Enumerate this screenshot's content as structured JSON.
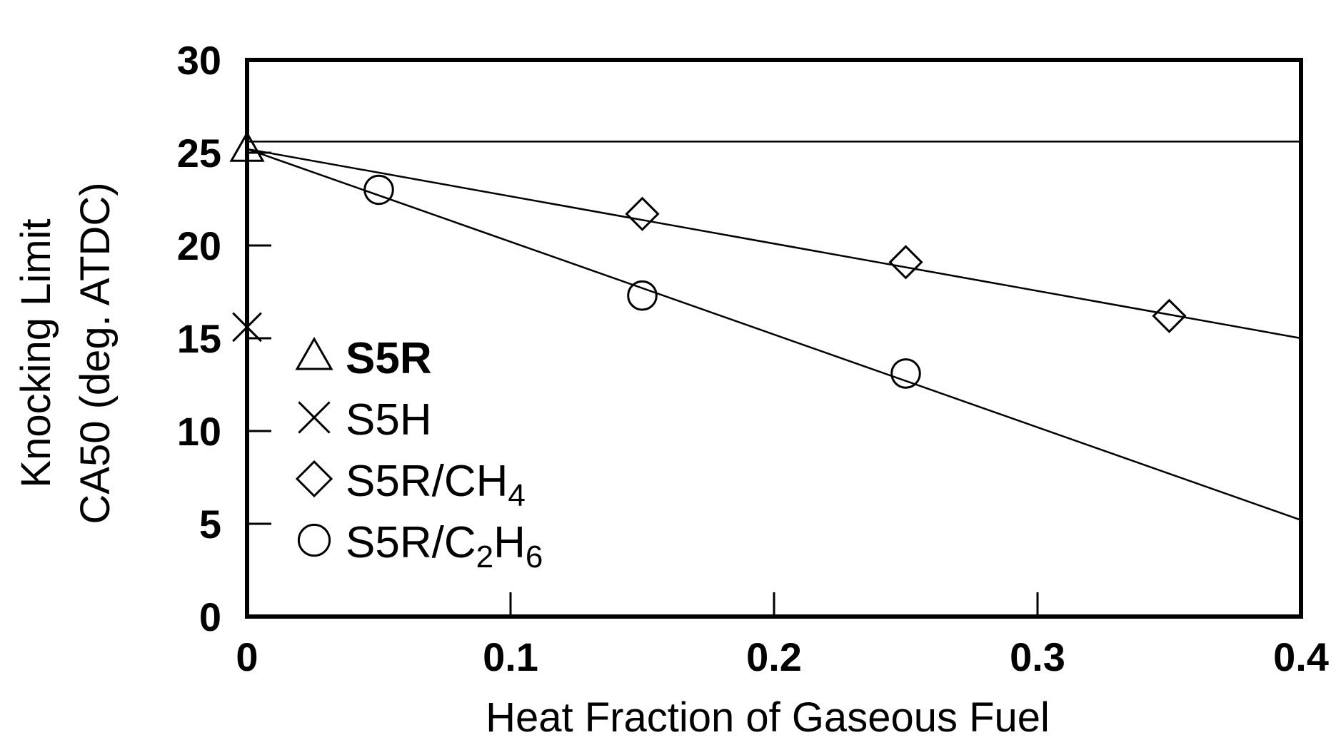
{
  "chart_data": {
    "type": "scatter",
    "xlabel": "Heat Fraction of Gaseous Fuel",
    "ylabel_lines": [
      "Knocking Limit",
      "CA50 (deg. ATDC)"
    ],
    "xlim": [
      0,
      0.4
    ],
    "ylim": [
      0,
      30
    ],
    "x_ticks": [
      "0",
      "0.1",
      "0.2",
      "0.3",
      "0.4"
    ],
    "y_ticks": [
      "0",
      "5",
      "10",
      "15",
      "20",
      "25",
      "30"
    ],
    "grid": false,
    "legend_position": "left",
    "series": [
      {
        "name": "S5R",
        "marker": "triangle",
        "bold": true,
        "label_main": "S5R",
        "label_sub": "",
        "label_tail": "",
        "points": [
          [
            0,
            25.2
          ]
        ]
      },
      {
        "name": "S5H",
        "marker": "x",
        "bold": false,
        "label_main": "S5H",
        "label_sub": "",
        "label_tail": "",
        "points": [
          [
            0,
            15.6
          ]
        ]
      },
      {
        "name": "S5R/CH4",
        "marker": "diamond",
        "bold": false,
        "label_main": "S5R/CH",
        "label_sub": "4",
        "label_tail": "",
        "points": [
          [
            0.15,
            21.7
          ],
          [
            0.25,
            19.1
          ],
          [
            0.35,
            16.2
          ]
        ]
      },
      {
        "name": "S5R/C2H6",
        "marker": "circle",
        "bold": false,
        "label_main": "S5R/C",
        "label_sub": "2",
        "label_tail": "H",
        "label_sub2": "6",
        "points": [
          [
            0.05,
            23.0
          ],
          [
            0.15,
            17.3
          ],
          [
            0.25,
            13.1
          ]
        ]
      }
    ],
    "lines": [
      {
        "name": "horizontal-reference",
        "points": [
          [
            0,
            25.6
          ],
          [
            0.4,
            25.6
          ]
        ]
      },
      {
        "name": "ch4-trend",
        "points": [
          [
            0,
            25.2
          ],
          [
            0.4,
            15.0
          ]
        ]
      },
      {
        "name": "c2h6-trend",
        "points": [
          [
            0,
            25.2
          ],
          [
            0.4,
            5.2
          ]
        ]
      }
    ]
  }
}
